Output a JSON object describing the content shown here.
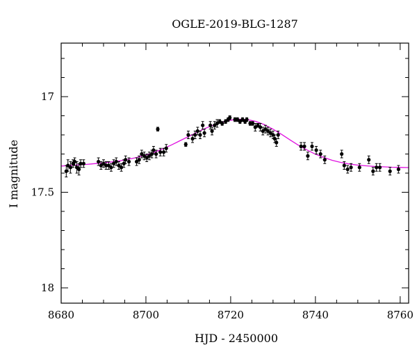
{
  "chart_data": {
    "type": "scatter",
    "title": "OGLE-2019-BLG-1287",
    "xlabel": "HJD - 2450000",
    "ylabel": "I magnitude",
    "xlim": [
      8680,
      8762
    ],
    "ylim": [
      18.08,
      16.72
    ],
    "y_inverted": true,
    "xticks": [
      "8680",
      "8700",
      "8720",
      "8740",
      "8760"
    ],
    "yticks": [
      "17",
      "17.5",
      "18"
    ],
    "grid": false,
    "legend": "none",
    "series": [
      {
        "kind": "points_with_errorbars",
        "color": "#000000",
        "points": [
          [
            8681.2,
            17.39,
            0.03
          ],
          [
            8681.6,
            17.36,
            0.03
          ],
          [
            8682.2,
            17.37,
            0.03
          ],
          [
            8682.8,
            17.35,
            0.02
          ],
          [
            8683.2,
            17.34,
            0.02
          ],
          [
            8683.7,
            17.37,
            0.03
          ],
          [
            8684.2,
            17.38,
            0.03
          ],
          [
            8684.6,
            17.35,
            0.02
          ],
          [
            8685.3,
            17.35,
            0.02
          ],
          [
            8688.8,
            17.34,
            0.02
          ],
          [
            8689.4,
            17.36,
            0.02
          ],
          [
            8690.0,
            17.35,
            0.02
          ],
          [
            8690.6,
            17.36,
            0.02
          ],
          [
            8691.2,
            17.36,
            0.02
          ],
          [
            8691.8,
            17.37,
            0.02
          ],
          [
            8692.4,
            17.35,
            0.02
          ],
          [
            8693.0,
            17.34,
            0.02
          ],
          [
            8693.6,
            17.36,
            0.02
          ],
          [
            8694.2,
            17.37,
            0.02
          ],
          [
            8694.8,
            17.35,
            0.02
          ],
          [
            8695.2,
            17.33,
            0.02
          ],
          [
            8696.0,
            17.34,
            0.02
          ],
          [
            8697.8,
            17.34,
            0.02
          ],
          [
            8698.4,
            17.33,
            0.02
          ],
          [
            8699.0,
            17.3,
            0.02
          ],
          [
            8699.6,
            17.31,
            0.02
          ],
          [
            8700.2,
            17.32,
            0.02
          ],
          [
            8700.8,
            17.31,
            0.02
          ],
          [
            8701.4,
            17.3,
            0.02
          ],
          [
            8701.8,
            17.28,
            0.02
          ],
          [
            8702.4,
            17.3,
            0.02
          ],
          [
            8702.8,
            17.17,
            0.01
          ],
          [
            8703.4,
            17.29,
            0.02
          ],
          [
            8704.2,
            17.29,
            0.02
          ],
          [
            8704.8,
            17.27,
            0.02
          ],
          [
            8709.4,
            17.25,
            0.01
          ],
          [
            8710.0,
            17.2,
            0.02
          ],
          [
            8711.0,
            17.22,
            0.02
          ],
          [
            8711.6,
            17.2,
            0.02
          ],
          [
            8712.2,
            17.18,
            0.02
          ],
          [
            8712.8,
            17.2,
            0.02
          ],
          [
            8713.4,
            17.15,
            0.02
          ],
          [
            8713.8,
            17.19,
            0.02
          ],
          [
            8715.2,
            17.15,
            0.02
          ],
          [
            8715.6,
            17.18,
            0.02
          ],
          [
            8716.2,
            17.15,
            0.02
          ],
          [
            8716.8,
            17.14,
            0.02
          ],
          [
            8717.4,
            17.13,
            0.01
          ],
          [
            8718.0,
            17.14,
            0.01
          ],
          [
            8718.8,
            17.13,
            0.01
          ],
          [
            8719.4,
            17.12,
            0.01
          ],
          [
            8719.8,
            17.11,
            0.01
          ],
          [
            8721.0,
            17.12,
            0.01
          ],
          [
            8721.6,
            17.12,
            0.01
          ],
          [
            8722.2,
            17.13,
            0.01
          ],
          [
            8722.8,
            17.12,
            0.01
          ],
          [
            8723.4,
            17.13,
            0.01
          ],
          [
            8723.8,
            17.12,
            0.01
          ],
          [
            8724.6,
            17.14,
            0.01
          ],
          [
            8725.2,
            17.14,
            0.01
          ],
          [
            8725.8,
            17.16,
            0.02
          ],
          [
            8726.4,
            17.15,
            0.01
          ],
          [
            8727.0,
            17.16,
            0.02
          ],
          [
            8727.6,
            17.18,
            0.02
          ],
          [
            8728.2,
            17.17,
            0.02
          ],
          [
            8728.8,
            17.18,
            0.02
          ],
          [
            8729.4,
            17.19,
            0.02
          ],
          [
            8730.0,
            17.2,
            0.02
          ],
          [
            8730.4,
            17.22,
            0.02
          ],
          [
            8730.8,
            17.24,
            0.02
          ],
          [
            8731.2,
            17.2,
            0.02
          ],
          [
            8736.6,
            17.26,
            0.02
          ],
          [
            8737.4,
            17.26,
            0.02
          ],
          [
            8738.2,
            17.31,
            0.02
          ],
          [
            8739.2,
            17.26,
            0.02
          ],
          [
            8740.2,
            17.28,
            0.02
          ],
          [
            8741.2,
            17.3,
            0.02
          ],
          [
            8742.2,
            17.33,
            0.02
          ],
          [
            8746.2,
            17.3,
            0.02
          ],
          [
            8746.8,
            17.36,
            0.02
          ],
          [
            8747.6,
            17.38,
            0.02
          ],
          [
            8748.4,
            17.37,
            0.02
          ],
          [
            8750.4,
            17.37,
            0.02
          ],
          [
            8752.6,
            17.33,
            0.02
          ],
          [
            8753.6,
            17.39,
            0.02
          ],
          [
            8754.4,
            17.37,
            0.02
          ],
          [
            8755.2,
            17.37,
            0.02
          ],
          [
            8757.6,
            17.39,
            0.02
          ],
          [
            8759.6,
            17.38,
            0.02
          ]
        ]
      },
      {
        "kind": "model_curve",
        "color": "#e010e0",
        "points": [
          [
            8680,
            17.363
          ],
          [
            8682,
            17.36
          ],
          [
            8684,
            17.357
          ],
          [
            8686,
            17.354
          ],
          [
            8688,
            17.35
          ],
          [
            8690,
            17.346
          ],
          [
            8692,
            17.341
          ],
          [
            8694,
            17.335
          ],
          [
            8696,
            17.327
          ],
          [
            8698,
            17.317
          ],
          [
            8700,
            17.305
          ],
          [
            8702,
            17.291
          ],
          [
            8704,
            17.273
          ],
          [
            8706,
            17.253
          ],
          [
            8708,
            17.231
          ],
          [
            8710,
            17.209
          ],
          [
            8712,
            17.187
          ],
          [
            8714,
            17.166
          ],
          [
            8716,
            17.148
          ],
          [
            8718,
            17.133
          ],
          [
            8720,
            17.123
          ],
          [
            8722,
            17.118
          ],
          [
            8724,
            17.12
          ],
          [
            8726,
            17.13
          ],
          [
            8728,
            17.147
          ],
          [
            8730,
            17.17
          ],
          [
            8732,
            17.197
          ],
          [
            8734,
            17.226
          ],
          [
            8736,
            17.254
          ],
          [
            8738,
            17.279
          ],
          [
            8740,
            17.301
          ],
          [
            8742,
            17.318
          ],
          [
            8744,
            17.333
          ],
          [
            8746,
            17.344
          ],
          [
            8748,
            17.352
          ],
          [
            8750,
            17.358
          ],
          [
            8752,
            17.362
          ],
          [
            8754,
            17.365
          ],
          [
            8756,
            17.367
          ],
          [
            8758,
            17.369
          ],
          [
            8760,
            17.37
          ],
          [
            8762,
            17.371
          ]
        ]
      }
    ]
  }
}
